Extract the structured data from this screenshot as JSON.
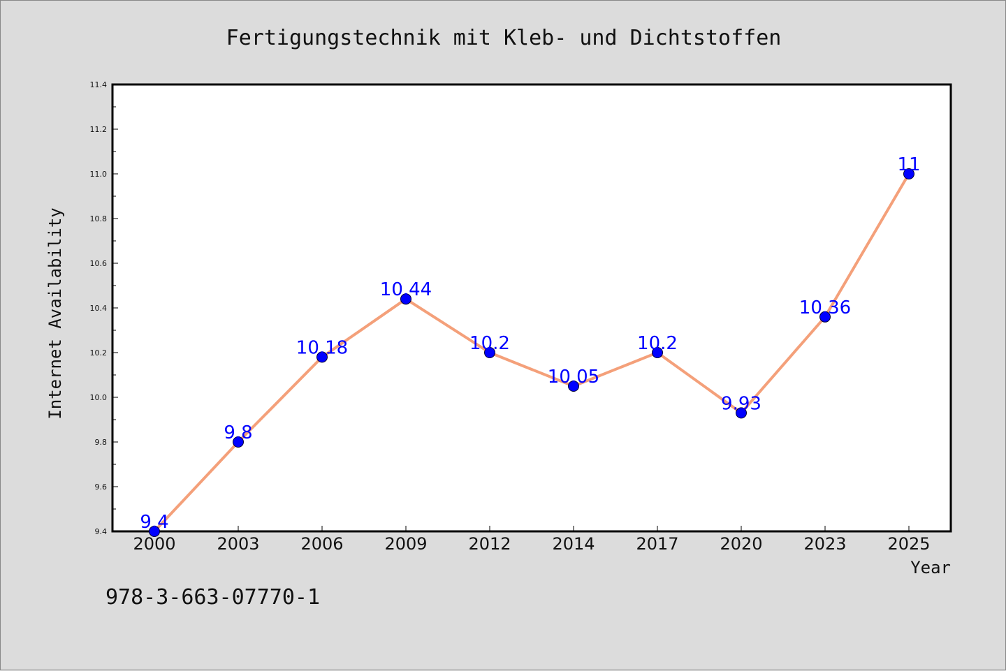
{
  "chart_data": {
    "type": "line",
    "title": "Fertigungstechnik mit Kleb- und Dichtstoffen",
    "xlabel": "Year",
    "ylabel": "Internet Availability",
    "categories": [
      "2000",
      "2003",
      "2006",
      "2009",
      "2012",
      "2014",
      "2017",
      "2020",
      "2023",
      "2025"
    ],
    "series": [
      {
        "values": [
          9.4,
          9.8,
          10.18,
          10.44,
          10.2,
          10.05,
          10.2,
          9.93,
          10.36,
          11
        ],
        "labels": [
          "9.4",
          "9.8",
          "10.18",
          "10.44",
          "10.2",
          "10.05",
          "10.2",
          "9.93",
          "10.36",
          "11"
        ],
        "line_color": "#f4a07a",
        "marker_color": "#0000ff"
      }
    ],
    "ylim": [
      9.4,
      11.4
    ],
    "yticks": [
      "9.4",
      "9.6",
      "9.8",
      "10.0",
      "10.2",
      "10.4",
      "10.6",
      "10.8",
      "11.0",
      "11.2",
      "11.4"
    ],
    "grid": false,
    "legend": "none"
  },
  "footer_text": "978-3-663-07770-1"
}
